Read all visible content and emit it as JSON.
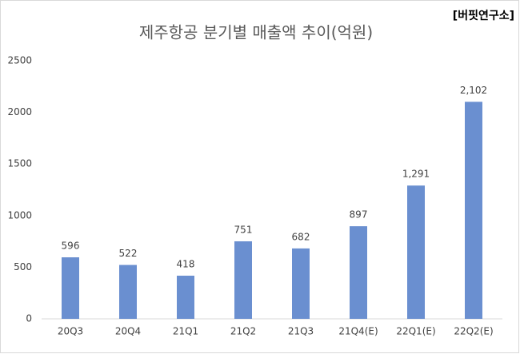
{
  "chart_data": {
    "type": "bar",
    "title": "제주항공 분기별 매출액 추이(억원)",
    "annotation": "[버핏연구소]",
    "categories": [
      "20Q3",
      "20Q4",
      "21Q1",
      "21Q2",
      "21Q3",
      "21Q4(E)",
      "22Q1(E)",
      "22Q2(E)"
    ],
    "values": [
      596,
      522,
      418,
      751,
      682,
      897,
      1291,
      2102
    ],
    "value_labels": [
      "596",
      "522",
      "418",
      "751",
      "682",
      "897",
      "1,291",
      "2,102"
    ],
    "color": "#6a8fd0",
    "ylim": [
      0,
      2500
    ],
    "yticks": [
      0,
      500,
      1000,
      1500,
      2000,
      2500
    ],
    "grid": false
  }
}
